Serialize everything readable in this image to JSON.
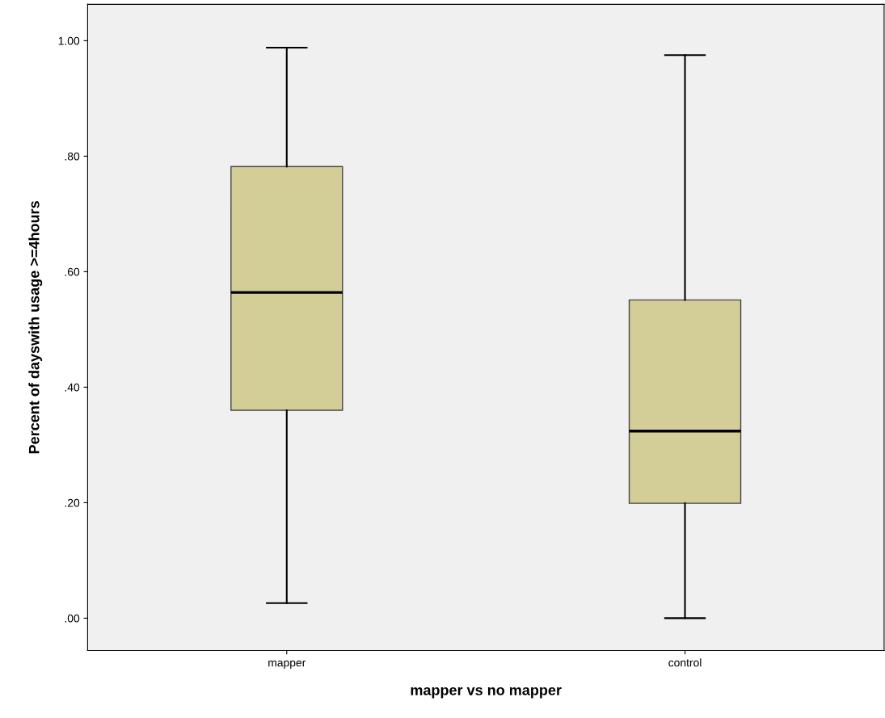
{
  "chart_data": {
    "type": "box",
    "xlabel": "mapper vs no mapper",
    "ylabel": "Percent of dayswith usage >=4hours",
    "categories": [
      "mapper",
      "control"
    ],
    "boxes": [
      {
        "low": 0.026,
        "q1": 0.36,
        "median": 0.564,
        "q3": 0.782,
        "high": 0.988
      },
      {
        "low": 0.0,
        "q1": 0.199,
        "median": 0.324,
        "q3": 0.551,
        "high": 0.975
      }
    ],
    "color": "#d3ce97",
    "ylim": [
      -0.056,
      1.063
    ],
    "yticks": [
      {
        "value": 0,
        "label": ".00"
      },
      {
        "value": 0.2,
        "label": ".20"
      },
      {
        "value": 0.4,
        "label": ".40"
      },
      {
        "value": 0.6,
        "label": ".60"
      },
      {
        "value": 0.8,
        "label": ".80"
      },
      {
        "value": 1.0,
        "label": "1.00"
      }
    ],
    "grid": false
  }
}
